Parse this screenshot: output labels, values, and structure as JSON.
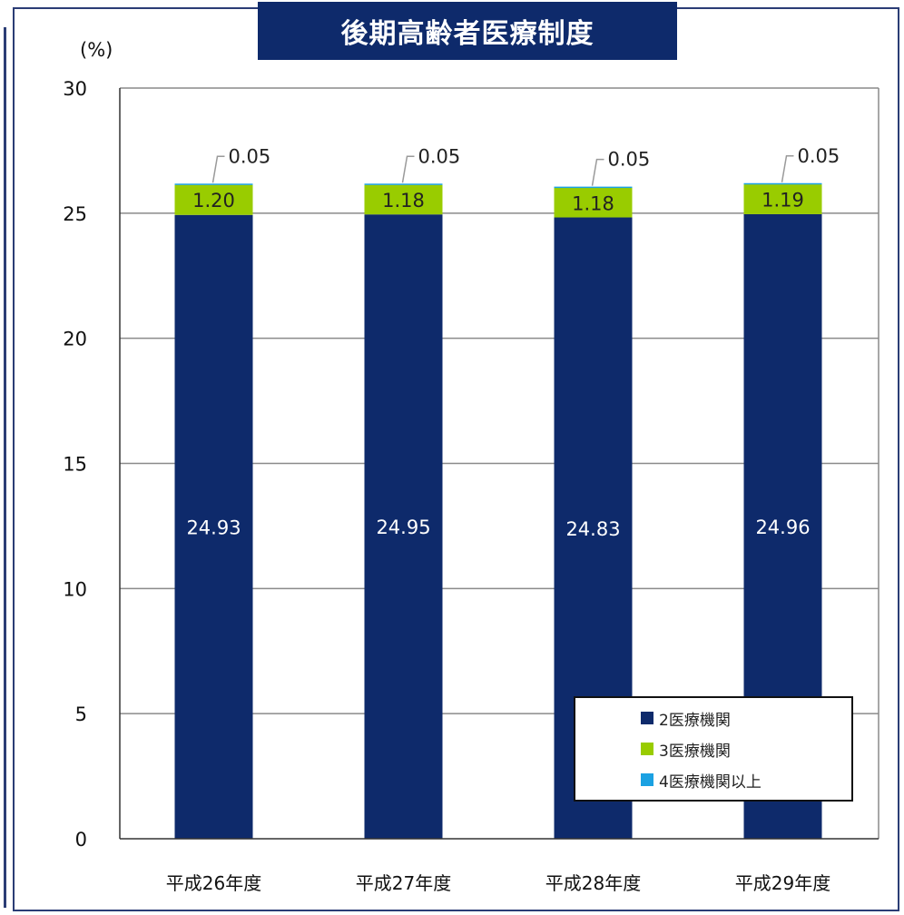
{
  "title": "後期高齢者医療制度",
  "unit_label": "(%)",
  "colors": {
    "s2": "#0e2a6b",
    "s3": "#99cc00",
    "s4": "#1ba1e2",
    "title_bg": "#0e2a6b"
  },
  "chart_data": {
    "type": "bar",
    "stacked": true,
    "categories": [
      "平成26年度",
      "平成27年度",
      "平成28年度",
      "平成29年度"
    ],
    "series": [
      {
        "name": "2医療機関",
        "values": [
          24.93,
          24.95,
          24.83,
          24.96
        ]
      },
      {
        "name": "3医療機関",
        "values": [
          1.2,
          1.18,
          1.18,
          1.19
        ]
      },
      {
        "name": "4医療機関以上",
        "values": [
          0.05,
          0.05,
          0.05,
          0.05
        ]
      }
    ],
    "value_labels": [
      [
        "24.93",
        "1.20",
        "0.05"
      ],
      [
        "24.95",
        "1.18",
        "0.05"
      ],
      [
        "24.83",
        "1.18",
        "0.05"
      ],
      [
        "24.96",
        "1.19",
        "0.05"
      ]
    ],
    "ylabel": "(%)",
    "ylim": [
      0,
      30
    ],
    "yticks": [
      0,
      5,
      10,
      15,
      20,
      25,
      30
    ],
    "grid": true,
    "legend_position": "bottom-right"
  }
}
